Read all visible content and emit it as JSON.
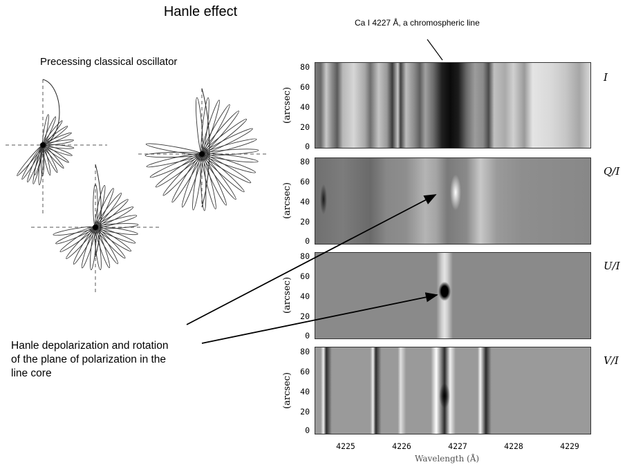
{
  "title": "Hanle effect",
  "oscillator_title": "Precessing classical oscillator",
  "line_label": "Ca I 4227 Å, a chromospheric line",
  "annotation": {
    "line1": "Hanle depolarization and rotation",
    "line2": "of the plane of  polarization in the",
    "line3": "line core"
  },
  "panels": [
    {
      "stokes": "I",
      "ylabel": "(arcsec)",
      "yticks": [
        "80",
        "60",
        "40",
        "20",
        "0"
      ]
    },
    {
      "stokes": "Q/I",
      "ylabel": "(arcsec)",
      "yticks": [
        "80",
        "60",
        "40",
        "20",
        "0"
      ]
    },
    {
      "stokes": "U/I",
      "ylabel": "(arcsec)",
      "yticks": [
        "80",
        "60",
        "40",
        "20",
        "0"
      ]
    },
    {
      "stokes": "V/I",
      "ylabel": "(arcsec)",
      "yticks": [
        "80",
        "60",
        "40",
        "20",
        "0"
      ]
    }
  ],
  "xticks": [
    "4225",
    "4226",
    "4227",
    "4228",
    "4229"
  ],
  "xlabel": "Wavelength (Å)"
}
